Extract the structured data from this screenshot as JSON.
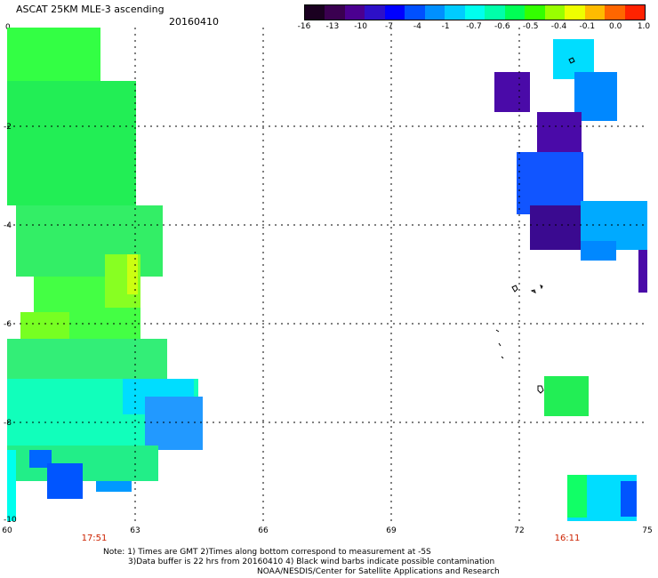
{
  "header": {
    "title": "ASCAT 25KM MLE-3 ascending",
    "date": "20160410"
  },
  "colorbar": {
    "colors": [
      "#1a0020",
      "#3a0050",
      "#4b0090",
      "#2d10c8",
      "#0000ff",
      "#0050ff",
      "#0090ff",
      "#00ccff",
      "#00ffee",
      "#00ffaa",
      "#00ff55",
      "#33ff00",
      "#99ff00",
      "#eeff00",
      "#ffbb00",
      "#ff6600",
      "#ff2200"
    ],
    "labels": [
      "-16",
      "-13",
      "-10",
      "-7",
      "-4",
      "-1",
      "-0.7",
      "-0.6",
      "-0.5",
      "-0.4",
      "-0.1",
      "0.0",
      "1.0"
    ]
  },
  "axes": {
    "corner_label": "0",
    "x_labels": [
      "60",
      "63",
      "66",
      "69",
      "72",
      "75"
    ],
    "y_labels": [
      "-2",
      "-4",
      "-6",
      "-8",
      "-10"
    ],
    "x_range": [
      60,
      75
    ],
    "y_range": [
      0,
      -10
    ],
    "grid": true
  },
  "times": [
    "17:51",
    "16:11"
  ],
  "notes": [
    "Note: 1) Times are GMT 2)Times along bottom correspond to measurement at -5S",
    "3)Data buffer is 22 hrs from 20160410 4) Black wind barbs indicate possible contamination",
    "NOAA/NESDIS/Center for Satellite Applications and Research"
  ]
}
